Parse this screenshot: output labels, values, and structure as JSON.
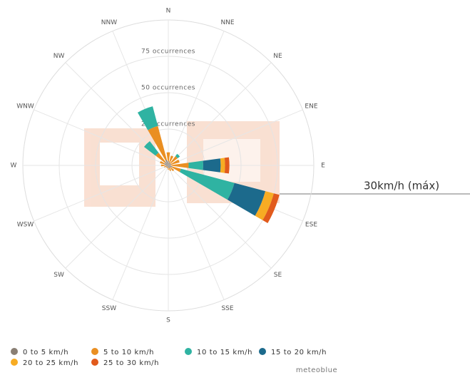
{
  "chart_data": {
    "type": "windrose",
    "categories": [
      "N",
      "NNE",
      "NE",
      "ENE",
      "E",
      "ESE",
      "SE",
      "SSE",
      "S",
      "SSW",
      "SW",
      "WSW",
      "W",
      "WNW",
      "NW",
      "NNW"
    ],
    "rlim": [
      0,
      100
    ],
    "rticks": [
      {
        "value": 25,
        "label": "25 occurrences"
      },
      {
        "value": 50,
        "label": "50 occurrences"
      },
      {
        "value": 75,
        "label": "75 occurrences"
      }
    ],
    "series": [
      {
        "name": "0 to 5 km/h",
        "color": "#8a7f74",
        "values": [
          3,
          2,
          2,
          2,
          2,
          3,
          2,
          2,
          2,
          1,
          1,
          2,
          2,
          3,
          3,
          4
        ]
      },
      {
        "name": "5 to 10 km/h",
        "color": "#ea8f22",
        "values": [
          6,
          5,
          6,
          6,
          12,
          6,
          3,
          2,
          1,
          1,
          1,
          1,
          3,
          3,
          8,
          24
        ]
      },
      {
        "name": "10 to 15 km/h",
        "color": "#2fb3a2",
        "values": [
          0,
          0,
          2,
          0,
          10,
          38,
          0,
          0,
          0,
          0,
          0,
          0,
          0,
          0,
          10,
          14
        ]
      },
      {
        "name": "15 to 20 km/h",
        "color": "#1c6a8c",
        "values": [
          0,
          0,
          0,
          0,
          12,
          22,
          0,
          0,
          0,
          0,
          0,
          0,
          0,
          0,
          0,
          0
        ]
      },
      {
        "name": "20 to 25 km/h",
        "color": "#f7ac23",
        "values": [
          0,
          0,
          0,
          0,
          3,
          6,
          0,
          0,
          0,
          0,
          0,
          0,
          0,
          0,
          0,
          0
        ]
      },
      {
        "name": "25 to 30 km/h",
        "color": "#e15a1c",
        "values": [
          0,
          0,
          0,
          0,
          3,
          4,
          0,
          0,
          0,
          0,
          0,
          0,
          0,
          0,
          0,
          0
        ]
      }
    ],
    "annotation": "30km/h (máx)",
    "credit": "meteoblue"
  }
}
